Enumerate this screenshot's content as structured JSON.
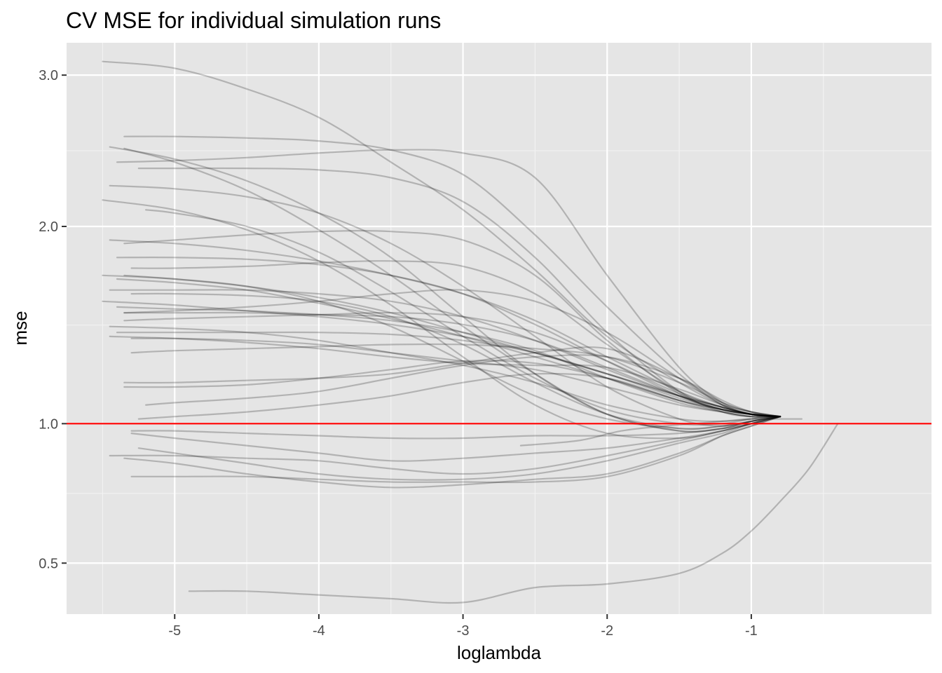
{
  "chart_data": {
    "type": "line",
    "title": "CV MSE for individual simulation runs",
    "xlabel": "loglambda",
    "ylabel": "mse",
    "xlim": [
      -5.75,
      0.25
    ],
    "ylim": [
      0.36,
      3.24
    ],
    "x_ticks": [
      -5,
      -4,
      -3,
      -2,
      -1
    ],
    "x_tick_labels": [
      "-5",
      "-4",
      "-3",
      "-2",
      "-1"
    ],
    "y_ticks": [
      0.5,
      1.0,
      2.0,
      3.0
    ],
    "y_tick_labels": [
      "0.5",
      "1.0",
      "2.0",
      "3.0"
    ],
    "grid": true,
    "background": "#e5e5e5",
    "series_color": "#000000",
    "series_opacity": 0.22,
    "reference_line": {
      "y": 1.0,
      "color": "#ff0000"
    },
    "series": [
      {
        "x": [
          -5.5,
          -5,
          -4.5,
          -4,
          -3.5,
          -3,
          -2.5,
          -2,
          -1.5,
          -1.2,
          -1,
          -0.8
        ],
        "y": [
          3.1,
          3.05,
          2.9,
          2.7,
          2.4,
          2.1,
          1.75,
          1.4,
          1.18,
          1.08,
          1.04,
          1.03
        ]
      },
      {
        "x": [
          -5.35,
          -5,
          -4.5,
          -4,
          -3.5,
          -3,
          -2.5,
          -2,
          -1.5,
          -1.2,
          -1,
          -0.8
        ],
        "y": [
          2.57,
          2.57,
          2.56,
          2.54,
          2.48,
          2.32,
          1.95,
          1.55,
          1.22,
          1.08,
          1.04,
          1.03
        ]
      },
      {
        "x": [
          -5.45,
          -5,
          -4.5,
          -4,
          -3.5,
          -3,
          -2.5,
          -2,
          -1.5,
          -1.2,
          -1,
          -0.8
        ],
        "y": [
          2.5,
          2.42,
          2.28,
          2.08,
          1.82,
          1.5,
          1.22,
          1.04,
          0.97,
          0.98,
          1.0,
          1.03
        ]
      },
      {
        "x": [
          -5.4,
          -5,
          -4.5,
          -4,
          -3.5,
          -3,
          -2.5,
          -2,
          -1.5,
          -1.2,
          -1,
          -0.8
        ],
        "y": [
          2.4,
          2.41,
          2.43,
          2.46,
          2.48,
          2.46,
          2.3,
          1.72,
          1.25,
          1.09,
          1.04,
          1.03
        ]
      },
      {
        "x": [
          -5.25,
          -5,
          -4.5,
          -4,
          -3.5,
          -3,
          -2.5,
          -2,
          -1.5,
          -1.2,
          -1,
          -0.8
        ],
        "y": [
          2.36,
          2.36,
          2.36,
          2.35,
          2.3,
          2.15,
          1.82,
          1.42,
          1.14,
          1.05,
          1.03,
          1.03
        ]
      },
      {
        "x": [
          -5.35,
          -5,
          -4.5,
          -4,
          -3.5,
          -3,
          -2.5,
          -2,
          -1.5,
          -1.2,
          -1,
          -0.8
        ],
        "y": [
          2.49,
          2.4,
          2.22,
          1.98,
          1.72,
          1.45,
          1.22,
          1.04,
          0.97,
          0.98,
          1.01,
          1.03
        ]
      },
      {
        "x": [
          -5.45,
          -5,
          -4.5,
          -4,
          -3.5,
          -3,
          -2.5,
          -2,
          -1.5,
          -1.2,
          -1,
          -0.8
        ],
        "y": [
          2.25,
          2.23,
          2.18,
          2.08,
          1.9,
          1.66,
          1.4,
          1.16,
          1.02,
          0.99,
          1.01,
          1.03
        ]
      },
      {
        "x": [
          -5.5,
          -5,
          -4.5,
          -4,
          -3.5,
          -3,
          -2.5,
          -2,
          -1.5,
          -1.2,
          -1,
          -0.8
        ],
        "y": [
          2.16,
          2.1,
          1.98,
          1.8,
          1.56,
          1.3,
          1.08,
          0.96,
          0.94,
          0.97,
          1.0,
          1.03
        ]
      },
      {
        "x": [
          -5.2,
          -5,
          -4.5,
          -4,
          -3.5,
          -3,
          -2.5,
          -2,
          -1.5,
          -1.2,
          -1,
          -0.8
        ],
        "y": [
          2.1,
          2.08,
          2.0,
          1.85,
          1.63,
          1.4,
          1.2,
          1.06,
          1.0,
          1.0,
          1.02,
          1.03
        ]
      },
      {
        "x": [
          -5.45,
          -5,
          -4.5,
          -4,
          -3.5,
          -3,
          -2.5,
          -2,
          -1.5,
          -1.2,
          -1,
          -0.8
        ],
        "y": [
          1.92,
          1.9,
          1.86,
          1.8,
          1.72,
          1.62,
          1.48,
          1.3,
          1.14,
          1.07,
          1.04,
          1.03
        ]
      },
      {
        "x": [
          -5.35,
          -5,
          -4.5,
          -4,
          -3.5,
          -3,
          -2.5,
          -2,
          -1.5,
          -1.2,
          -1,
          -0.8
        ],
        "y": [
          1.9,
          1.92,
          1.95,
          1.97,
          1.97,
          1.92,
          1.72,
          1.38,
          1.13,
          1.06,
          1.04,
          1.03
        ]
      },
      {
        "x": [
          -5.4,
          -5,
          -4.5,
          -4,
          -3.5,
          -3,
          -2.5,
          -2,
          -1.5,
          -1.2,
          -1,
          -0.8
        ],
        "y": [
          1.82,
          1.82,
          1.81,
          1.78,
          1.72,
          1.62,
          1.46,
          1.28,
          1.12,
          1.06,
          1.04,
          1.03
        ]
      },
      {
        "x": [
          -5.3,
          -5,
          -4.5,
          -4,
          -3.5,
          -3,
          -2.5,
          -2,
          -1.5,
          -1.2,
          -1,
          -0.8
        ],
        "y": [
          1.76,
          1.76,
          1.77,
          1.79,
          1.8,
          1.77,
          1.62,
          1.36,
          1.14,
          1.07,
          1.04,
          1.03
        ]
      },
      {
        "x": [
          -5.5,
          -5,
          -4.5,
          -4,
          -3.5,
          -3,
          -2.5,
          -2,
          -1.5,
          -1.2,
          -1,
          -0.8
        ],
        "y": [
          1.72,
          1.7,
          1.66,
          1.58,
          1.45,
          1.28,
          1.12,
          1.02,
          0.98,
          0.99,
          1.01,
          1.03
        ]
      },
      {
        "x": [
          -5.35,
          -5,
          -4.5,
          -4,
          -3.5,
          -3,
          -2.5,
          -2,
          -1.5,
          -1.2,
          -1,
          -0.8
        ],
        "y": [
          1.72,
          1.7,
          1.66,
          1.6,
          1.52,
          1.42,
          1.32,
          1.22,
          1.12,
          1.07,
          1.04,
          1.03
        ]
      },
      {
        "x": [
          -5.4,
          -5,
          -4.5,
          -4,
          -3.5,
          -3,
          -2.5,
          -2,
          -1.5,
          -1.2,
          -1,
          -0.8
        ],
        "y": [
          1.7,
          1.68,
          1.64,
          1.57,
          1.49,
          1.4,
          1.3,
          1.2,
          1.1,
          1.06,
          1.04,
          1.03
        ]
      },
      {
        "x": [
          -5.3,
          -5,
          -4.5,
          -4,
          -3.5,
          -3,
          -2.5,
          -2,
          -1.5,
          -1.2,
          -1,
          -0.8
        ],
        "y": [
          1.62,
          1.62,
          1.61,
          1.58,
          1.5,
          1.36,
          1.18,
          1.04,
          0.98,
          0.99,
          1.01,
          1.03
        ]
      },
      {
        "x": [
          -5.45,
          -5,
          -4.5,
          -4,
          -3.5,
          -3,
          -2.5,
          -2,
          -1.5,
          -1.2,
          -1,
          -0.8
        ],
        "y": [
          1.64,
          1.64,
          1.64,
          1.62,
          1.58,
          1.5,
          1.38,
          1.24,
          1.12,
          1.06,
          1.04,
          1.03
        ]
      },
      {
        "x": [
          -5.35,
          -5,
          -4.5,
          -4,
          -3.5,
          -3,
          -2.5,
          -2,
          -1.5,
          -1.2,
          -1,
          -0.8
        ],
        "y": [
          1.52,
          1.53,
          1.55,
          1.58,
          1.62,
          1.64,
          1.58,
          1.42,
          1.2,
          1.08,
          1.04,
          1.03
        ]
      },
      {
        "x": [
          -5.5,
          -5,
          -4.5,
          -4,
          -3.5,
          -3,
          -2.5,
          -2,
          -1.5,
          -1.2,
          -1,
          -0.8
        ],
        "y": [
          1.58,
          1.56,
          1.53,
          1.5,
          1.46,
          1.4,
          1.32,
          1.22,
          1.11,
          1.06,
          1.04,
          1.03
        ]
      },
      {
        "x": [
          -5.4,
          -5,
          -4.5,
          -4,
          -3.5,
          -3,
          -2.5,
          -2,
          -1.5,
          -1.2,
          -1,
          -0.8
        ],
        "y": [
          1.55,
          1.54,
          1.53,
          1.51,
          1.48,
          1.42,
          1.33,
          1.2,
          1.09,
          1.05,
          1.03,
          1.03
        ]
      },
      {
        "x": [
          -5.35,
          -5,
          -4.5,
          -4,
          -3.5,
          -3,
          -2.5,
          -2,
          -1.5,
          -1.2,
          -1,
          -0.8
        ],
        "y": [
          1.52,
          1.52,
          1.52,
          1.51,
          1.5,
          1.46,
          1.38,
          1.25,
          1.12,
          1.06,
          1.04,
          1.03
        ]
      },
      {
        "x": [
          -5.35,
          -5,
          -4.5,
          -4,
          -3.5,
          -3,
          -2.5,
          -2,
          -1.5,
          -1.2,
          -1,
          -0.8
        ],
        "y": [
          1.48,
          1.49,
          1.5,
          1.51,
          1.52,
          1.5,
          1.42,
          1.28,
          1.13,
          1.07,
          1.04,
          1.03
        ]
      },
      {
        "x": [
          -5.45,
          -5,
          -4.5,
          -4,
          -3.5,
          -3,
          -2.5,
          -2,
          -1.5,
          -1.2,
          -1,
          -0.8
        ],
        "y": [
          1.45,
          1.44,
          1.42,
          1.38,
          1.32,
          1.26,
          1.18,
          1.08,
          1.02,
          1.01,
          1.02,
          1.03
        ]
      },
      {
        "x": [
          -5.4,
          -5,
          -4.5,
          -4,
          -3.5,
          -3,
          -2.5,
          -2,
          -1.5,
          -1.2,
          -1,
          -0.8
        ],
        "y": [
          1.42,
          1.42,
          1.42,
          1.42,
          1.41,
          1.38,
          1.32,
          1.22,
          1.12,
          1.07,
          1.04,
          1.03
        ]
      },
      {
        "x": [
          -5.45,
          -5,
          -4.5,
          -4,
          -3.5,
          -3,
          -2.5,
          -2,
          -1.5,
          -1.2,
          -1,
          -0.8
        ],
        "y": [
          1.4,
          1.39,
          1.37,
          1.34,
          1.3,
          1.27,
          1.26,
          1.25,
          1.15,
          1.08,
          1.05,
          1.03
        ]
      },
      {
        "x": [
          -5.3,
          -5,
          -4.5,
          -4,
          -3.5,
          -3,
          -2.5,
          -2,
          -1.5,
          -1.2,
          -1,
          -0.8
        ],
        "y": [
          1.39,
          1.39,
          1.38,
          1.36,
          1.32,
          1.28,
          1.24,
          1.16,
          1.08,
          1.05,
          1.03,
          1.03
        ]
      },
      {
        "x": [
          -5.3,
          -5,
          -4.5,
          -4,
          -3.5,
          -3,
          -2.5,
          -2,
          -1.5,
          -1.2,
          -1,
          -0.8
        ],
        "y": [
          1.32,
          1.33,
          1.34,
          1.35,
          1.36,
          1.36,
          1.34,
          1.3,
          1.18,
          1.09,
          1.05,
          1.03
        ]
      },
      {
        "x": [
          -5.35,
          -5,
          -4.5,
          -4,
          -3.5,
          -3,
          -2.5,
          -2,
          -1.5,
          -1.2,
          -1,
          -0.8
        ],
        "y": [
          1.18,
          1.18,
          1.19,
          1.2,
          1.22,
          1.27,
          1.32,
          1.34,
          1.2,
          1.09,
          1.05,
          1.03
        ]
      },
      {
        "x": [
          -5.35,
          -5,
          -4.5,
          -4,
          -3.5,
          -3,
          -2.5,
          -2,
          -1.5,
          -1.2,
          -1,
          -0.8
        ],
        "y": [
          1.16,
          1.16,
          1.17,
          1.2,
          1.24,
          1.28,
          1.27,
          1.2,
          1.1,
          1.06,
          1.04,
          1.03
        ]
      },
      {
        "x": [
          -5.2,
          -5,
          -4.5,
          -4,
          -3.5,
          -3,
          -2.5,
          -2,
          -1.5,
          -1.2,
          -1,
          -0.8
        ],
        "y": [
          1.08,
          1.09,
          1.11,
          1.14,
          1.2,
          1.26,
          1.3,
          1.3,
          1.2,
          1.1,
          1.05,
          1.03
        ]
      },
      {
        "x": [
          -5.25,
          -5,
          -4.5,
          -4,
          -3.5,
          -3,
          -2.5,
          -2,
          -1.5,
          -1.2,
          -1,
          -0.8
        ],
        "y": [
          1.02,
          1.03,
          1.05,
          1.08,
          1.12,
          1.18,
          1.22,
          1.2,
          1.1,
          1.05,
          1.03,
          1.03
        ]
      },
      {
        "x": [
          -5.3,
          -5,
          -4.5,
          -4,
          -3.5,
          -3,
          -2.5,
          -2,
          -1.5,
          -1.2,
          -1,
          -0.8
        ],
        "y": [
          0.97,
          0.97,
          0.96,
          0.95,
          0.94,
          0.94,
          0.95,
          0.95,
          0.96,
          0.98,
          1.01,
          1.03
        ]
      },
      {
        "x": [
          -5.3,
          -5,
          -4.5,
          -4,
          -3.5,
          -3,
          -2.5,
          -2,
          -1.5,
          -1.2,
          -1,
          -0.8
        ],
        "y": [
          0.96,
          0.94,
          0.91,
          0.88,
          0.85,
          0.86,
          0.88,
          0.9,
          0.94,
          0.97,
          1.0,
          1.03
        ]
      },
      {
        "x": [
          -5.45,
          -5,
          -4.5,
          -4,
          -3.5,
          -3,
          -2.5,
          -2,
          -1.5,
          -1.2,
          -1,
          -0.8
        ],
        "y": [
          0.87,
          0.87,
          0.86,
          0.85,
          0.82,
          0.8,
          0.82,
          0.87,
          0.93,
          0.97,
          1.0,
          1.03
        ]
      },
      {
        "x": [
          -5.35,
          -5,
          -4.5,
          -4,
          -3.5,
          -3,
          -2.5,
          -2,
          -1.5,
          -1.2,
          -1,
          -0.8
        ],
        "y": [
          0.86,
          0.84,
          0.8,
          0.77,
          0.75,
          0.76,
          0.78,
          0.8,
          0.88,
          0.95,
          0.99,
          1.03
        ]
      },
      {
        "x": [
          -5.3,
          -5,
          -4.5,
          -4,
          -3.5,
          -3,
          -2.5,
          -2,
          -1.5,
          -1.2,
          -1,
          -0.8
        ],
        "y": [
          0.79,
          0.79,
          0.79,
          0.78,
          0.77,
          0.77,
          0.77,
          0.79,
          0.87,
          0.95,
          0.99,
          1.03
        ]
      },
      {
        "x": [
          -5.25,
          -5,
          -4.5,
          -4,
          -3.5,
          -3,
          -2.5,
          -2,
          -1.5,
          -1.2,
          -1,
          -0.8
        ],
        "y": [
          0.9,
          0.88,
          0.84,
          0.8,
          0.78,
          0.78,
          0.8,
          0.85,
          0.92,
          0.96,
          1.0,
          1.03
        ]
      },
      {
        "x": [
          -4.9,
          -4.5,
          -4,
          -3.5,
          -3,
          -2.5,
          -2,
          -1.5,
          -1.2,
          -1,
          -0.8,
          -0.6,
          -0.4
        ],
        "y": [
          0.42,
          0.42,
          0.41,
          0.4,
          0.39,
          0.43,
          0.44,
          0.47,
          0.53,
          0.6,
          0.7,
          0.82,
          1.0
        ]
      },
      {
        "x": [
          -2.6,
          -2.2,
          -1.9,
          -1.6,
          -1.4,
          -1.2,
          -1,
          -0.8,
          -0.65
        ],
        "y": [
          0.91,
          0.93,
          0.97,
          0.99,
          1.0,
          1.01,
          1.02,
          1.02,
          1.02
        ]
      }
    ]
  }
}
